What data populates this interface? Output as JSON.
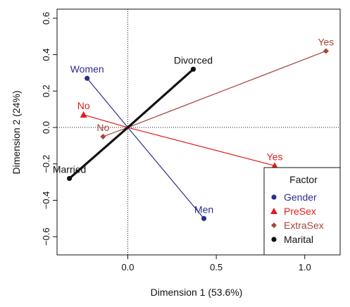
{
  "chart_data": {
    "type": "scatter",
    "xlabel": "Dimension 1 (53.6%)",
    "ylabel": "Dimension 2 (24%)",
    "xlim": [
      -0.4,
      1.2
    ],
    "ylim": [
      -0.7,
      0.65
    ],
    "x_ticks": [
      0.0,
      0.5,
      1.0
    ],
    "x_tick_labels": [
      "0.0",
      "0.5",
      "1.0"
    ],
    "y_ticks": [
      -0.6,
      -0.4,
      -0.2,
      0.0,
      0.2,
      0.4,
      0.6
    ],
    "y_tick_labels": [
      "−0.6",
      "−0.4",
      "−0.2",
      "0.0",
      "0.2",
      "0.4",
      "0.6"
    ],
    "grid": false,
    "reference_lines": {
      "x": 0,
      "y": 0,
      "style": "dotted"
    },
    "legend": {
      "title": "Factor",
      "position": "bottom-right",
      "entries": [
        {
          "label": "Gender",
          "color": "#2e2e8c",
          "marker": "circle"
        },
        {
          "label": "PreSex",
          "color": "#e41a1c",
          "marker": "triangle"
        },
        {
          "label": "ExtraSex",
          "color": "#a5453a",
          "marker": "diamond"
        },
        {
          "label": "Marital",
          "color": "#111111",
          "marker": "circle"
        }
      ]
    },
    "series": [
      {
        "name": "Gender",
        "color": "#2e2e8c",
        "marker": "circle",
        "line_width": 1.2,
        "points": [
          {
            "label": "Women",
            "x": -0.23,
            "y": 0.27,
            "label_side": "above"
          },
          {
            "label": "Men",
            "x": 0.43,
            "y": -0.5,
            "label_side": "above"
          }
        ]
      },
      {
        "name": "PreSex",
        "color": "#e41a1c",
        "marker": "triangle",
        "line_width": 1.2,
        "points": [
          {
            "label": "No",
            "x": -0.25,
            "y": 0.07,
            "label_side": "above"
          },
          {
            "label": "Yes",
            "x": 0.83,
            "y": -0.21,
            "label_side": "above"
          }
        ]
      },
      {
        "name": "ExtraSex",
        "color": "#a5453a",
        "marker": "diamond",
        "line_width": 1.2,
        "points": [
          {
            "label": "No",
            "x": -0.14,
            "y": -0.05,
            "label_side": "above"
          },
          {
            "label": "Yes",
            "x": 1.12,
            "y": 0.42,
            "label_side": "above"
          }
        ]
      },
      {
        "name": "Marital",
        "color": "#111111",
        "marker": "circle",
        "line_width": 3.2,
        "points": [
          {
            "label": "Divorced",
            "x": 0.37,
            "y": 0.32,
            "label_side": "above"
          },
          {
            "label": "Married",
            "x": -0.33,
            "y": -0.28,
            "label_side": "above"
          }
        ]
      }
    ]
  }
}
